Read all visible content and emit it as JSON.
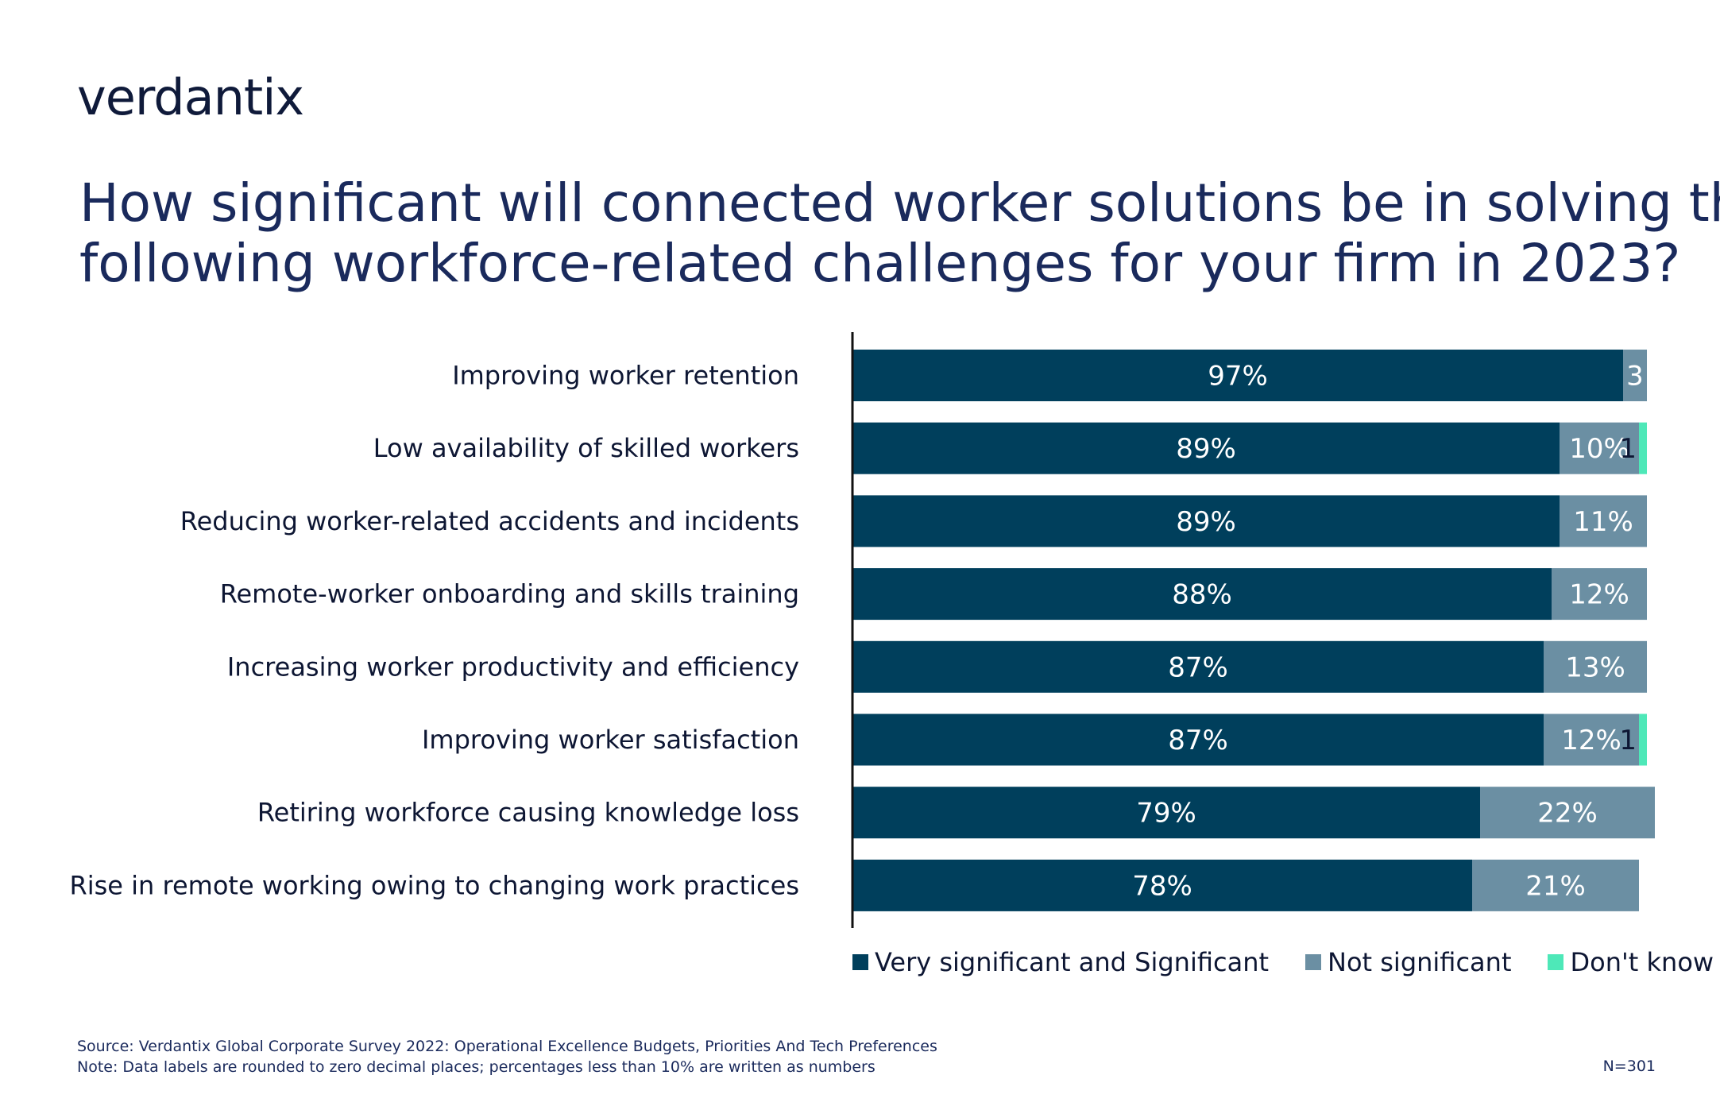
{
  "brand": {
    "logo_text": "verdantix"
  },
  "title_lines": [
    "How significant will connected worker solutions be in solving the",
    "following workforce-related challenges for your firm in 2023?"
  ],
  "colors": {
    "very_significant": "#003f5c",
    "not_significant": "#6b8fa3",
    "dont_know": "#4ee8b8",
    "axis": "#111111"
  },
  "chart_data": {
    "type": "bar",
    "orientation": "horizontal",
    "stacked": true,
    "categories": [
      "Improving worker retention",
      "Low availability of skilled workers",
      "Reducing worker-related accidents and incidents",
      "Remote-worker onboarding and skills training",
      "Increasing worker productivity and efficiency",
      "Improving worker satisfaction",
      "Retiring workforce causing knowledge loss",
      "Rise in remote working owing to changing work practices"
    ],
    "series": [
      {
        "name": "Very significant and Significant",
        "values": [
          97,
          89,
          89,
          88,
          87,
          87,
          79,
          78
        ],
        "labels": [
          "97%",
          "89%",
          "89%",
          "88%",
          "87%",
          "87%",
          "79%",
          "78%"
        ]
      },
      {
        "name": "Not significant",
        "values": [
          3,
          10,
          11,
          12,
          13,
          12,
          22,
          21
        ],
        "labels": [
          "3",
          "10%",
          "11%",
          "12%",
          "13%",
          "12%",
          "22%",
          "21%"
        ]
      },
      {
        "name": "Don't know",
        "values": [
          0,
          1,
          0,
          0,
          0,
          1,
          0,
          0
        ],
        "labels": [
          "",
          "1",
          "",
          "",
          "",
          "1",
          "",
          ""
        ]
      }
    ],
    "xlim": [
      0,
      100
    ],
    "grid": false,
    "legend_position": "bottom"
  },
  "footer": {
    "source": "Source: Verdantix Global Corporate Survey 2022: Operational Excellence Budgets, Priorities And Tech Preferences",
    "note": "Note: Data labels are rounded to zero decimal places; percentages less than 10% are written as numbers",
    "sample_size": "N=301"
  }
}
